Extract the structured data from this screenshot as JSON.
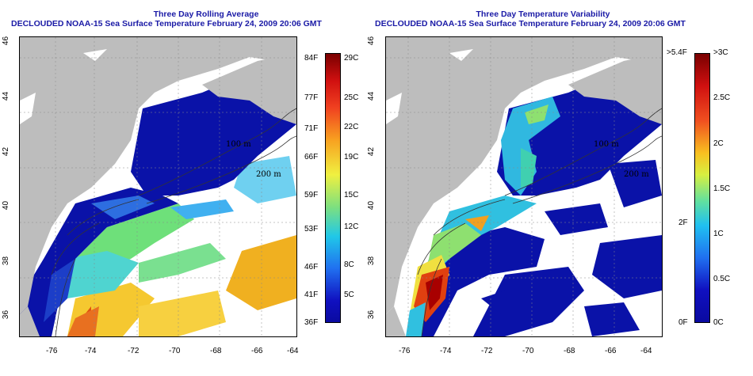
{
  "left_panel": {
    "title_line1": "Three Day Rolling Average",
    "title_line2": "DECLOUDED NOAA-15 Sea Surface Temperature February 24, 2009 20:06 GMT",
    "colorbar_f_labels": [
      "84F",
      "77F",
      "71F",
      "66F",
      "59F",
      "53F",
      "46F",
      "41F",
      "36F"
    ],
    "colorbar_c_labels": [
      "29C",
      "25C",
      "22C",
      "19C",
      "15C",
      "12C",
      "8C",
      "5C"
    ]
  },
  "right_panel": {
    "title_line1": "Three Day Temperature Variability",
    "title_line2": "DECLOUDED NOAA-15 Sea Surface Temperature February 24, 2009 20:06 GMT",
    "colorbar_f_labels": [
      ">5.4F",
      "2F",
      "0F"
    ],
    "colorbar_c_labels": [
      ">3C",
      "2.5C",
      "2C",
      "1.5C",
      "1C",
      "0.5C",
      "0C"
    ]
  },
  "x_ticks": [
    "-76",
    "-74",
    "-72",
    "-70",
    "-68",
    "-66",
    "-64"
  ],
  "y_ticks": [
    "46",
    "44",
    "42",
    "40",
    "38",
    "36"
  ],
  "contour_labels": [
    "100 m",
    "200 m"
  ],
  "colors": {
    "land": "#bdbdbd",
    "title": "#1a1aa6",
    "deep_blue": "#0a12a8",
    "ocean_white": "#ffffff"
  }
}
